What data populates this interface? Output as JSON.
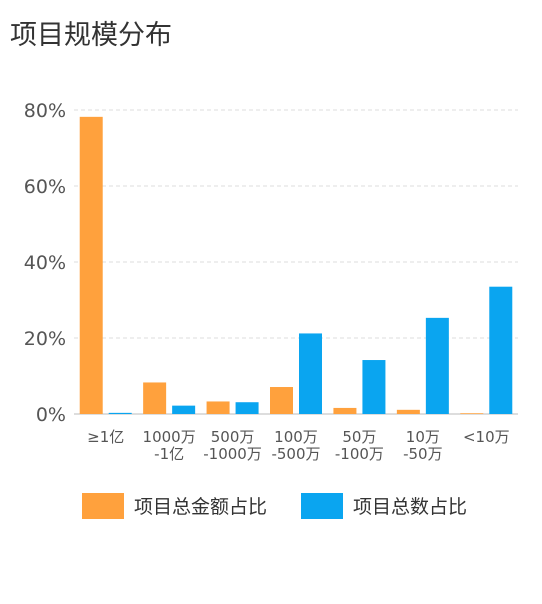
{
  "title": "项目规模分布",
  "colors": {
    "amount": "#ffa13d",
    "count": "#0aa5f0",
    "grid": "#dddddd",
    "axis": "#bbbbbb"
  },
  "chart_data": {
    "type": "bar",
    "title": "项目规模分布",
    "categories": [
      [
        "≥1亿"
      ],
      [
        "1000万",
        "-1亿"
      ],
      [
        "500万",
        "-1000万"
      ],
      [
        "100万",
        "-500万"
      ],
      [
        "50万",
        "-100万"
      ],
      [
        "10万",
        "-50万"
      ],
      [
        "<10万"
      ]
    ],
    "series": [
      {
        "name": "项目总金额占比",
        "color": "#ffa13d",
        "values": [
          78.2,
          8.3,
          3.3,
          7.1,
          1.6,
          1.1,
          0.2
        ]
      },
      {
        "name": "项目总数占比",
        "color": "#0aa5f0",
        "values": [
          0.3,
          2.2,
          3.1,
          21.2,
          14.2,
          25.3,
          33.5
        ]
      }
    ],
    "ylim": [
      0,
      80
    ],
    "yticks": [
      0,
      20,
      40,
      60,
      80
    ],
    "ytick_labels": [
      "0%",
      "20%",
      "40%",
      "60%",
      "80%"
    ],
    "grid": true,
    "legend_position": "bottom"
  }
}
